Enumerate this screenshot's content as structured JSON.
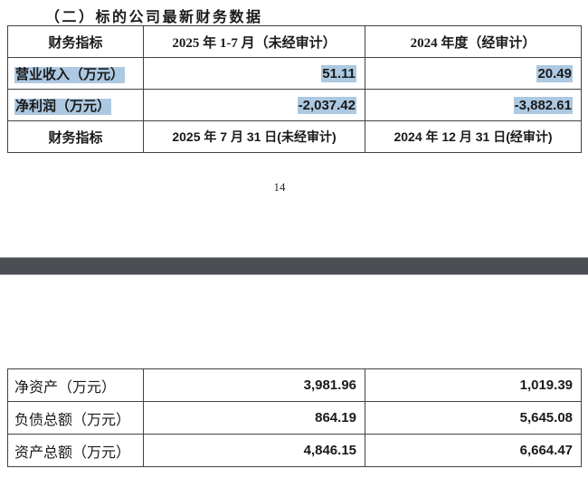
{
  "document": {
    "heading": "（二）标的公司最新财务数据",
    "page_number": "14"
  },
  "colors": {
    "highlight": "#adc9e2",
    "separator_bar": "#4b4e52",
    "table_border": "#424242",
    "text": "#1a1a1a"
  },
  "table_top": {
    "columns": [
      "财务指标",
      "2025 年 1-7 月（未经审计）",
      "2024 年度（经审计）"
    ],
    "rows": [
      {
        "label": "营业收入（万元）",
        "period_2025": "51.11",
        "period_2024": "20.49",
        "highlighted": true
      },
      {
        "label": "净利润（万元）",
        "period_2025": "-2,037.42",
        "period_2024": "-3,882.61",
        "highlighted": true
      },
      {
        "label": "财务指标",
        "period_2025": "2025 年 7 月 31 日(未经审计)",
        "period_2024": "2024 年 12 月 31 日(经审计)",
        "highlighted": false
      }
    ]
  },
  "table_bottom": {
    "rows": [
      {
        "label": "净资产（万元）",
        "period_2025": "3,981.96",
        "period_2024": "1,019.39"
      },
      {
        "label": "负债总额（万元）",
        "period_2025": "864.19",
        "period_2024": "5,645.08"
      },
      {
        "label": "资产总额（万元）",
        "period_2025": "4,846.15",
        "period_2024": "6,664.47"
      }
    ]
  }
}
